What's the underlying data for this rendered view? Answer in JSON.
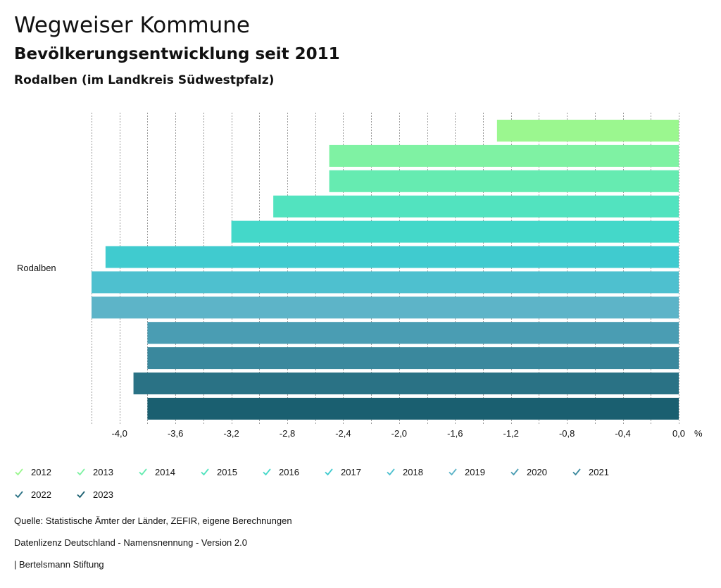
{
  "header": {
    "title": "Wegweiser Kommune",
    "subtitle": "Bevölkerungsentwicklung seit 2011",
    "region": "Rodalben (im Landkreis Südwestpfalz)"
  },
  "chart_data": {
    "type": "bar",
    "orientation": "horizontal",
    "categories": [
      "Rodalben"
    ],
    "category_label": "Rodalben",
    "unit": "%",
    "xlim": [
      -4.2,
      0
    ],
    "ticks": [
      -4.0,
      -3.6,
      -3.2,
      -2.8,
      -2.4,
      -2.0,
      -1.6,
      -1.2,
      -0.8,
      -0.4,
      0.0
    ],
    "tick_labels": [
      "-4,0",
      "-3,6",
      "-3,2",
      "-2,8",
      "-2,4",
      "-2,0",
      "-1,6",
      "-1,2",
      "-0,8",
      "-0,4",
      "0,0"
    ],
    "grid": true,
    "legend_position": "bottom",
    "series": [
      {
        "name": "2012",
        "values": [
          -1.3
        ],
        "color": "#9bf78f"
      },
      {
        "name": "2013",
        "values": [
          -2.5
        ],
        "color": "#7ff2a3"
      },
      {
        "name": "2014",
        "values": [
          -2.5
        ],
        "color": "#66ebb1"
      },
      {
        "name": "2015",
        "values": [
          -2.9
        ],
        "color": "#52e3bf"
      },
      {
        "name": "2016",
        "values": [
          -3.2
        ],
        "color": "#44d8c9"
      },
      {
        "name": "2017",
        "values": [
          -4.1
        ],
        "color": "#40cbcf"
      },
      {
        "name": "2018",
        "values": [
          -4.2
        ],
        "color": "#4ec0cf"
      },
      {
        "name": "2019",
        "values": [
          -4.2
        ],
        "color": "#5db4c8"
      },
      {
        "name": "2020",
        "values": [
          -3.8
        ],
        "color": "#4a9db3"
      },
      {
        "name": "2021",
        "values": [
          -3.8
        ],
        "color": "#3a889d"
      },
      {
        "name": "2022",
        "values": [
          -3.9
        ],
        "color": "#2a7285"
      },
      {
        "name": "2023",
        "values": [
          -3.8
        ],
        "color": "#1a5f70"
      }
    ]
  },
  "footer": {
    "source": "Quelle: Statistische Ämter der Länder, ZEFIR, eigene Berechnungen",
    "license": "Datenlizenz Deutschland - Namensnennung - Version 2.0",
    "credit": "| Bertelsmann Stiftung"
  }
}
